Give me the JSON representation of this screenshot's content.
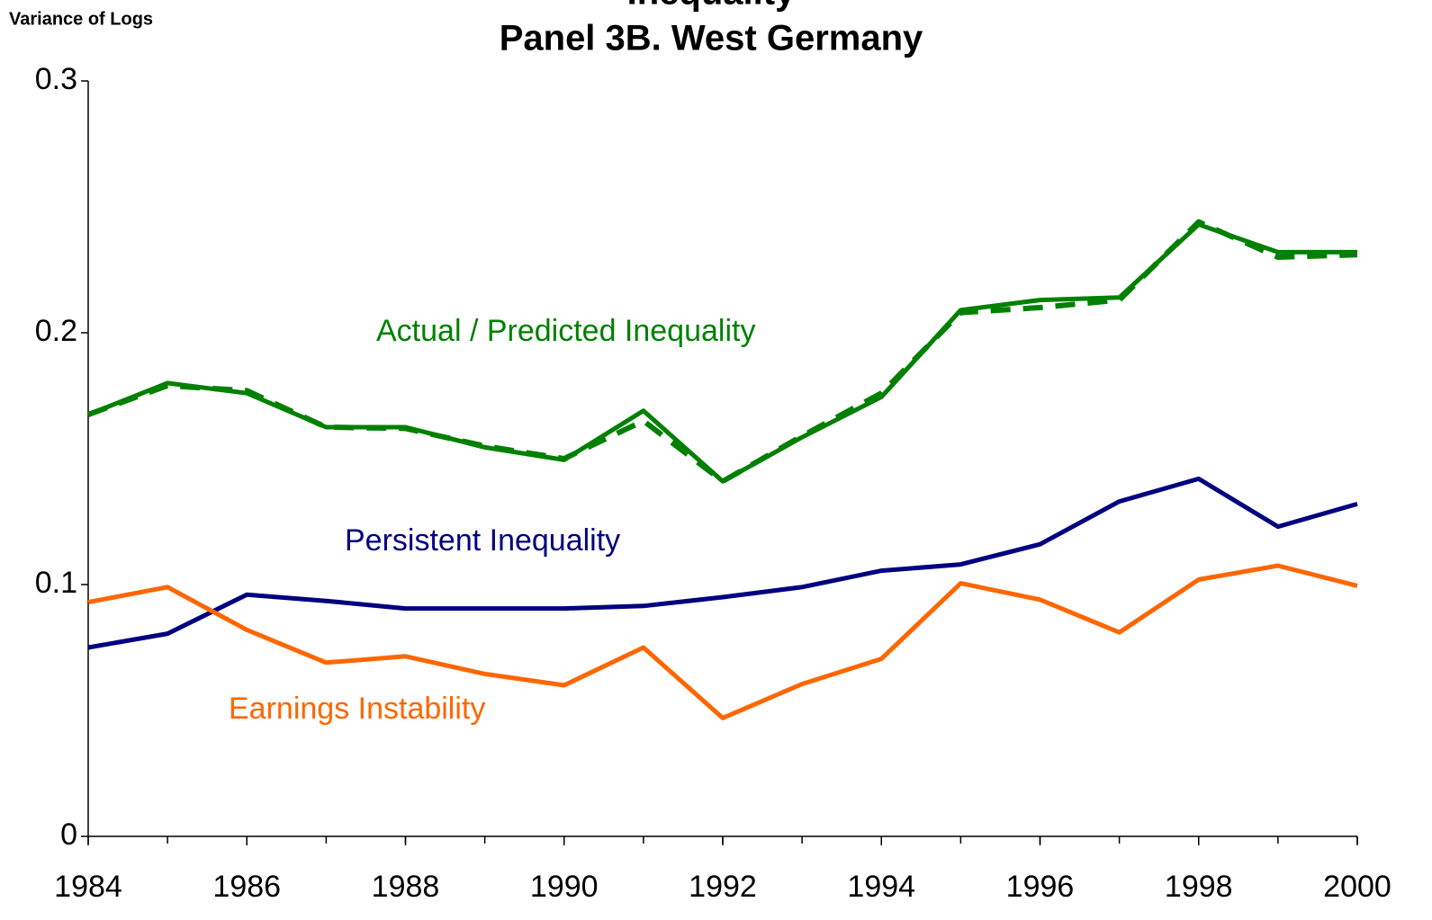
{
  "chart_data": {
    "type": "line",
    "title": "Inequality",
    "subtitle": "Panel 3B.  West Germany",
    "y_label": "Variance of Logs",
    "x": [
      1984,
      1985,
      1986,
      1987,
      1988,
      1989,
      1990,
      1991,
      1992,
      1993,
      1994,
      1995,
      1996,
      1997,
      1998,
      1999,
      2000
    ],
    "series": [
      {
        "color": "#008000",
        "dash": false,
        "values": [
          0.1675,
          0.18,
          0.176,
          0.1625,
          0.1625,
          0.1545,
          0.1495,
          0.169,
          0.141,
          0.1585,
          0.1745,
          0.209,
          0.213,
          0.214,
          0.243,
          0.232,
          0.232
        ]
      },
      {
        "color": "#008000",
        "dash": true,
        "values": [
          0.1675,
          0.179,
          0.177,
          0.1625,
          0.162,
          0.155,
          0.15,
          0.165,
          0.141,
          0.159,
          0.176,
          0.208,
          0.21,
          0.213,
          0.244,
          0.23,
          0.231
        ]
      },
      {
        "color": "#000080",
        "dash": false,
        "values": [
          0.075,
          0.0805,
          0.096,
          0.0935,
          0.0905,
          0.0905,
          0.0905,
          0.0915,
          0.095,
          0.099,
          0.1055,
          0.108,
          0.116,
          0.133,
          0.142,
          0.123,
          0.132
        ]
      },
      {
        "color": "#ff6600",
        "dash": false,
        "values": [
          0.093,
          0.099,
          0.082,
          0.069,
          0.0715,
          0.0645,
          0.06,
          0.075,
          0.047,
          0.0605,
          0.0705,
          0.1005,
          0.094,
          0.081,
          0.102,
          0.1075,
          0.0995
        ]
      }
    ],
    "annotations": [
      {
        "text": "Actual / Predicted Inequality",
        "color": "#008000"
      },
      {
        "text": "Persistent Inequality",
        "color": "#000080"
      },
      {
        "text": "Earnings Instability",
        "color": "#ff6600"
      }
    ],
    "xlim": [
      1984,
      2000
    ],
    "xticks": [
      1984,
      1986,
      1988,
      1990,
      1992,
      1994,
      1996,
      1998,
      2000
    ],
    "ylim": [
      0,
      0.3
    ],
    "yticks": [
      0,
      0.1,
      0.2,
      0.3
    ]
  }
}
